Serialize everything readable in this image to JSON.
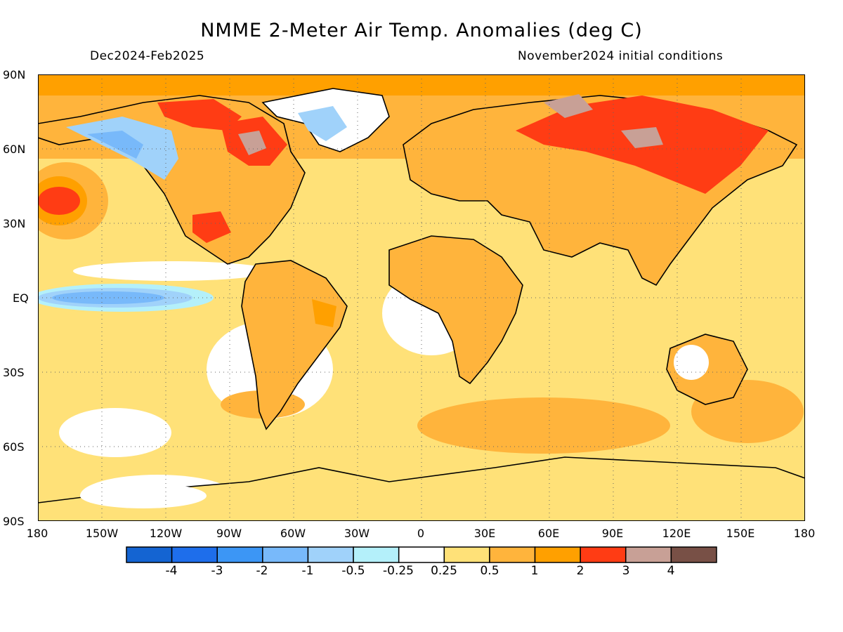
{
  "header": {
    "title": "NMME 2-Meter Air Temp. Anomalies (deg C)",
    "period": "Dec2024-Feb2025",
    "init": "November2024 initial conditions"
  },
  "axes": {
    "lat_ticks": [
      "90N",
      "60N",
      "30N",
      "EQ",
      "30S",
      "60S",
      "90S"
    ],
    "lon_ticks": [
      "180",
      "150W",
      "120W",
      "90W",
      "60W",
      "30W",
      "0",
      "30E",
      "60E",
      "90E",
      "120E",
      "150E",
      "180"
    ]
  },
  "legend": {
    "labels": [
      "-4",
      "-3",
      "-2",
      "-1",
      "-0.5",
      "-0.25",
      "0.25",
      "0.5",
      "1",
      "2",
      "3",
      "4"
    ],
    "colors": [
      "#1464d2",
      "#1e6eeb",
      "#3c96f5",
      "#78b9fa",
      "#a0d2fa",
      "#b4f0fa",
      "#ffffff",
      "#ffe178",
      "#ffb43c",
      "#ffa000",
      "#ff3c14",
      "#c8a096",
      "#785046"
    ]
  },
  "map_features": {
    "ocean_color": "#ffe178",
    "land_color": "#ffb43c",
    "coastline_color": "#000000",
    "grid": "dotted"
  }
}
